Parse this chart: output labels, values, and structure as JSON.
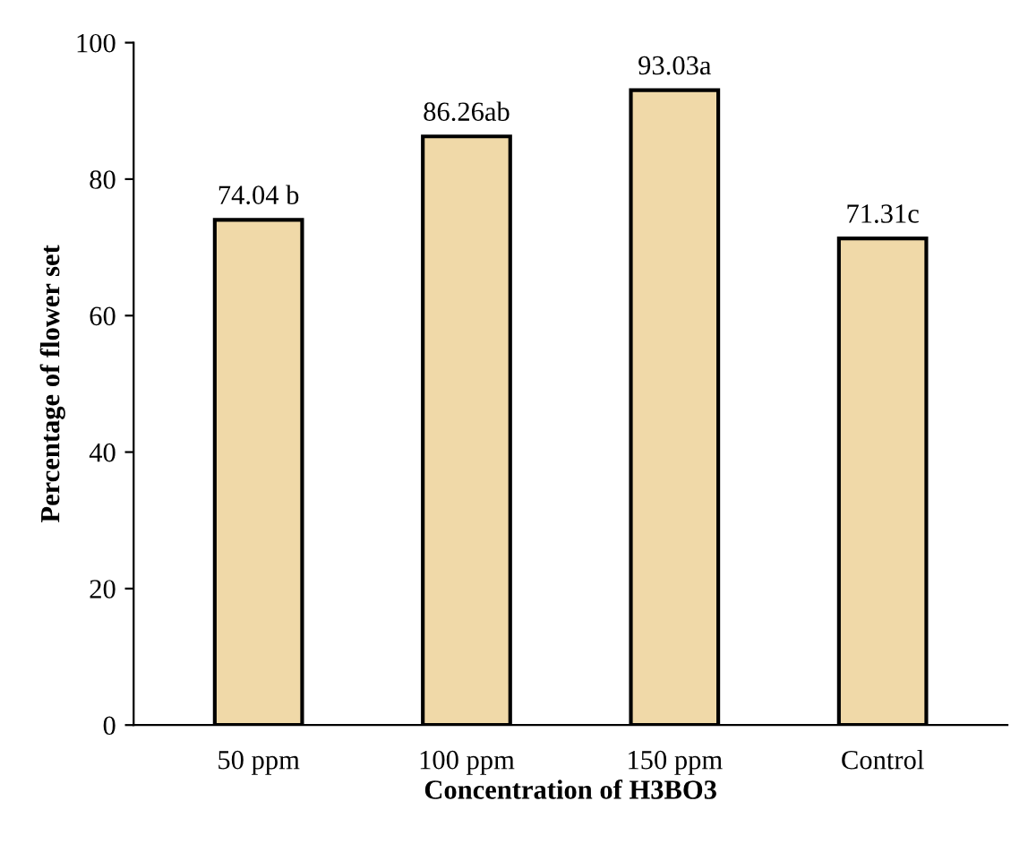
{
  "chart_data": {
    "type": "bar",
    "xlabel": "Concentration of H3BO3",
    "ylabel": "Percentage of flower set",
    "categories": [
      "50 ppm",
      "100 ppm",
      "150 ppm",
      "Control"
    ],
    "values": [
      74.04,
      86.26,
      93.03,
      71.31
    ],
    "value_labels": [
      "74.04 b",
      "86.26ab",
      "93.03a",
      "71.31c"
    ],
    "color": "#f0d9a8",
    "ylim": [
      0,
      100
    ],
    "yticks": [
      0,
      20,
      40,
      60,
      80,
      100
    ],
    "grid": false
  }
}
